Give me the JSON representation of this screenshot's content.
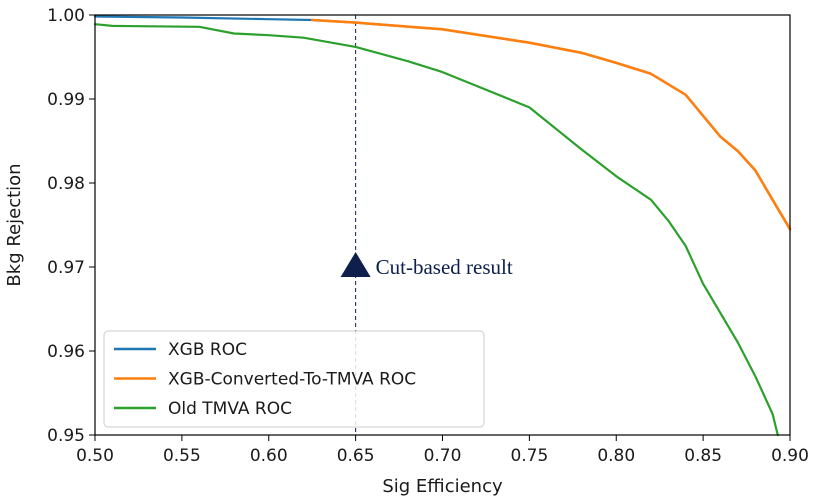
{
  "chart_data": {
    "type": "line",
    "xlabel": "Sig Efficiency",
    "ylabel": "Bkg Rejection",
    "xlim": [
      0.5,
      0.9
    ],
    "ylim": [
      0.95,
      1.0
    ],
    "xticks": [
      0.5,
      0.55,
      0.6,
      0.65,
      0.7,
      0.75,
      0.8,
      0.85,
      0.9
    ],
    "yticks": [
      0.95,
      0.96,
      0.97,
      0.98,
      0.99,
      1.0
    ],
    "xtick_labels": [
      "0.50",
      "0.55",
      "0.60",
      "0.65",
      "0.70",
      "0.75",
      "0.80",
      "0.85",
      "0.90"
    ],
    "ytick_labels": [
      "0.95",
      "0.96",
      "0.97",
      "0.98",
      "0.99",
      "1.00"
    ],
    "grid": false,
    "legend_position": "bottom-left",
    "series": [
      {
        "name": "XGB ROC",
        "color": "#1f77b4",
        "x": [
          0.5,
          0.55,
          0.6,
          0.625,
          0.65,
          0.7,
          0.75,
          0.78,
          0.8,
          0.82,
          0.84,
          0.85,
          0.86,
          0.87,
          0.88,
          0.89,
          0.9
        ],
        "y": [
          0.9999,
          0.9997,
          0.9995,
          0.9994,
          0.9991,
          0.9983,
          0.9967,
          0.9955,
          0.9943,
          0.993,
          0.9905,
          0.988,
          0.9855,
          0.9838,
          0.9815,
          0.978,
          0.9745
        ]
      },
      {
        "name": "XGB-Converted-To-TMVA ROC",
        "color": "#ff7f0e",
        "x": [
          0.625,
          0.65,
          0.7,
          0.75,
          0.78,
          0.8,
          0.82,
          0.84,
          0.85,
          0.86,
          0.87,
          0.88,
          0.89,
          0.9
        ],
        "y": [
          0.9994,
          0.9991,
          0.9983,
          0.9967,
          0.9955,
          0.9943,
          0.993,
          0.9905,
          0.988,
          0.9855,
          0.9838,
          0.9815,
          0.978,
          0.9745
        ]
      },
      {
        "name": "Old TMVA ROC",
        "color": "#2ca02c",
        "x": [
          0.5,
          0.51,
          0.56,
          0.58,
          0.6,
          0.62,
          0.65,
          0.68,
          0.7,
          0.75,
          0.78,
          0.8,
          0.82,
          0.83,
          0.84,
          0.85,
          0.86,
          0.87,
          0.88,
          0.89,
          0.893
        ],
        "y": [
          0.9989,
          0.9987,
          0.9986,
          0.9978,
          0.9976,
          0.9973,
          0.9962,
          0.9945,
          0.9932,
          0.989,
          0.984,
          0.9808,
          0.978,
          0.9755,
          0.9725,
          0.968,
          0.9645,
          0.961,
          0.957,
          0.9525,
          0.95
        ]
      }
    ],
    "reference_line": {
      "x": 0.65,
      "style": "dashed",
      "color": "#0d1f4a"
    },
    "annotation": {
      "x": 0.65,
      "y": 0.97,
      "text": "Cut-based result",
      "marker": "triangle",
      "color": "#0d1f4a"
    }
  }
}
